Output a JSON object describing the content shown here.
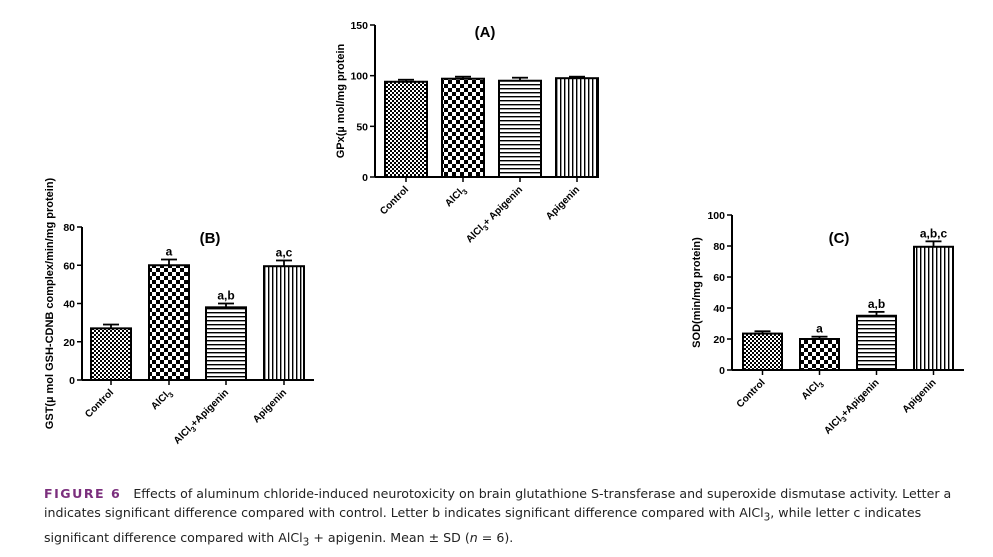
{
  "chart_data": [
    {
      "type": "bar",
      "panel": "(A)",
      "ylabel": "GPx(µ mol/mg protein",
      "ylim": [
        0,
        150
      ],
      "yticks": [
        0,
        50,
        100,
        150
      ],
      "categories": [
        "Control",
        "AlCl3",
        "AlCl3+ Apigenin",
        "Apigenin"
      ],
      "category_labels": [
        {
          "main": "Control",
          "sub": "",
          "suffix": ""
        },
        {
          "main": "AlCl",
          "sub": "3",
          "suffix": ""
        },
        {
          "main": "AlCl",
          "sub": "3",
          "suffix": "+ Apigenin"
        },
        {
          "main": "Apigenin",
          "sub": "",
          "suffix": ""
        }
      ],
      "values": [
        94,
        97,
        95,
        97.5
      ],
      "errors": [
        2,
        2,
        3,
        1.5
      ],
      "significance": [
        "",
        "",
        "",
        ""
      ],
      "patterns": [
        "dense-checker",
        "checker",
        "hlines",
        "vlines"
      ]
    },
    {
      "type": "bar",
      "panel": "(B)",
      "ylabel": "GST(µ mol GSH-CDNB complex/min/mg protein)",
      "ylim": [
        0,
        80
      ],
      "yticks": [
        0,
        20,
        40,
        60,
        80
      ],
      "categories": [
        "Control",
        "AlCl3",
        "AlCl3+Apigenin",
        "Apigenin"
      ],
      "category_labels": [
        {
          "main": "Control",
          "sub": "",
          "suffix": ""
        },
        {
          "main": "AlCl",
          "sub": "3",
          "suffix": ""
        },
        {
          "main": "AlCl",
          "sub": "3",
          "suffix": "+Apigenin"
        },
        {
          "main": "Apigenin",
          "sub": "",
          "suffix": ""
        }
      ],
      "values": [
        27,
        60,
        38,
        59.5
      ],
      "errors": [
        2,
        3,
        2,
        3
      ],
      "significance": [
        "",
        "a",
        "a,b",
        "a,c"
      ],
      "patterns": [
        "dense-checker",
        "checker",
        "hlines",
        "vlines"
      ]
    },
    {
      "type": "bar",
      "panel": "(C)",
      "ylabel": "SOD(min/mg protein)",
      "ylim": [
        0,
        100
      ],
      "yticks": [
        0,
        20,
        40,
        60,
        80,
        100
      ],
      "categories": [
        "Control",
        "AlCl3",
        "AlCl3+Apigenin",
        "Apigenin"
      ],
      "category_labels": [
        {
          "main": "Control",
          "sub": "",
          "suffix": ""
        },
        {
          "main": "AlCl",
          "sub": "3",
          "suffix": ""
        },
        {
          "main": "AlCl",
          "sub": "3",
          "suffix": "+Apigenin"
        },
        {
          "main": "Apigenin",
          "sub": "",
          "suffix": ""
        }
      ],
      "values": [
        23.5,
        20,
        35,
        79.5
      ],
      "errors": [
        1.5,
        1.5,
        2.5,
        3.5
      ],
      "significance": [
        "",
        "a",
        "a,b",
        "a,b,c"
      ],
      "patterns": [
        "dense-checker",
        "checker",
        "hlines",
        "vlines"
      ]
    }
  ],
  "caption": {
    "label": "FIGURE 6",
    "text_1": "Effects of aluminum chloride-induced neurotoxicity on brain glutathione S-transferase and superoxide dismutase activity. Letter a indicates significant difference compared with control. Letter b indicates significant difference compared with AlCl",
    "sub_1": "3",
    "text_2": ", while letter c indicates significant difference compared with AlCl",
    "sub_2": "3",
    "text_3": " + apigenin. Mean ± SD (",
    "n_var": "n",
    "text_4": " = 6)."
  }
}
